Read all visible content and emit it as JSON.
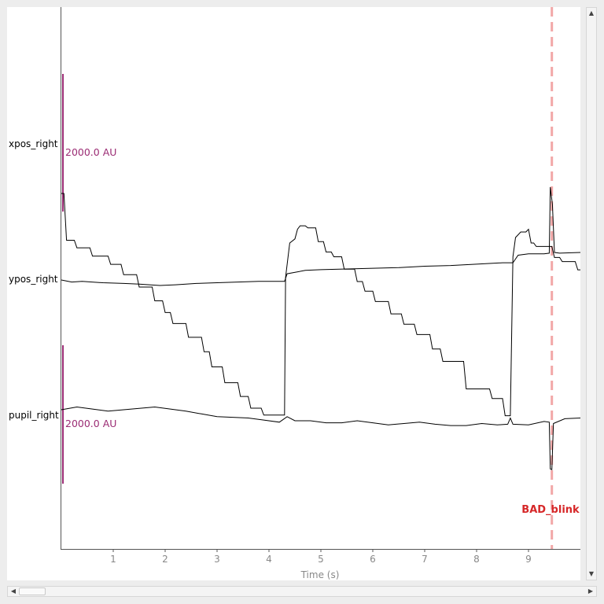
{
  "chart_data": {
    "type": "line",
    "xlabel": "Time (s)",
    "xlim": [
      0,
      10
    ],
    "x_ticks": [
      "1",
      "2",
      "3",
      "4",
      "5",
      "6",
      "7",
      "8",
      "9"
    ],
    "scale_unit_label": "2000.0 AU",
    "series": [
      {
        "name": "xpos_right",
        "color": "#000000",
        "points": [
          [
            0,
            -80
          ],
          [
            0.05,
            -80
          ],
          [
            0.1,
            -760
          ],
          [
            0.25,
            -760
          ],
          [
            0.3,
            -870
          ],
          [
            0.55,
            -870
          ],
          [
            0.6,
            -990
          ],
          [
            0.9,
            -990
          ],
          [
            0.95,
            -1110
          ],
          [
            1.15,
            -1110
          ],
          [
            1.2,
            -1260
          ],
          [
            1.45,
            -1260
          ],
          [
            1.5,
            -1440
          ],
          [
            1.75,
            -1440
          ],
          [
            1.8,
            -1640
          ],
          [
            1.95,
            -1640
          ],
          [
            2.0,
            -1810
          ],
          [
            2.1,
            -1810
          ],
          [
            2.15,
            -1970
          ],
          [
            2.4,
            -1970
          ],
          [
            2.45,
            -2170
          ],
          [
            2.7,
            -2170
          ],
          [
            2.75,
            -2380
          ],
          [
            2.85,
            -2380
          ],
          [
            2.9,
            -2600
          ],
          [
            3.1,
            -2600
          ],
          [
            3.15,
            -2830
          ],
          [
            3.4,
            -2830
          ],
          [
            3.45,
            -3030
          ],
          [
            3.6,
            -3030
          ],
          [
            3.65,
            -3200
          ],
          [
            3.85,
            -3200
          ],
          [
            3.9,
            -3300
          ],
          [
            4.3,
            -3300
          ],
          [
            4.32,
            -1300
          ],
          [
            4.4,
            -800
          ],
          [
            4.5,
            -740
          ],
          [
            4.55,
            -600
          ],
          [
            4.6,
            -550
          ],
          [
            4.7,
            -550
          ],
          [
            4.75,
            -580
          ],
          [
            4.9,
            -580
          ],
          [
            4.95,
            -780
          ],
          [
            5.05,
            -780
          ],
          [
            5.1,
            -930
          ],
          [
            5.2,
            -930
          ],
          [
            5.25,
            -1000
          ],
          [
            5.4,
            -1000
          ],
          [
            5.45,
            -1180
          ],
          [
            5.65,
            -1180
          ],
          [
            5.7,
            -1360
          ],
          [
            5.8,
            -1360
          ],
          [
            5.85,
            -1500
          ],
          [
            6.0,
            -1500
          ],
          [
            6.05,
            -1650
          ],
          [
            6.3,
            -1650
          ],
          [
            6.35,
            -1830
          ],
          [
            6.55,
            -1830
          ],
          [
            6.6,
            -1980
          ],
          [
            6.8,
            -1980
          ],
          [
            6.85,
            -2130
          ],
          [
            7.1,
            -2130
          ],
          [
            7.15,
            -2340
          ],
          [
            7.3,
            -2340
          ],
          [
            7.35,
            -2520
          ],
          [
            7.75,
            -2520
          ],
          [
            7.8,
            -2920
          ],
          [
            8.25,
            -2920
          ],
          [
            8.3,
            -3060
          ],
          [
            8.5,
            -3060
          ],
          [
            8.55,
            -3310
          ],
          [
            8.65,
            -3310
          ],
          [
            8.7,
            -1000
          ],
          [
            8.75,
            -720
          ],
          [
            8.85,
            -640
          ],
          [
            8.95,
            -640
          ],
          [
            9.0,
            -600
          ],
          [
            9.05,
            -800
          ],
          [
            9.1,
            -800
          ],
          [
            9.15,
            -850
          ],
          [
            9.45,
            -850
          ],
          [
            9.5,
            -1010
          ],
          [
            9.6,
            -1010
          ],
          [
            9.65,
            -1070
          ],
          [
            9.9,
            -1070
          ],
          [
            9.95,
            -1190
          ],
          [
            10.0,
            -1190
          ]
        ]
      },
      {
        "name": "ypos_right",
        "color": "#000000",
        "points": [
          [
            0,
            0
          ],
          [
            0.2,
            -30
          ],
          [
            0.4,
            -20
          ],
          [
            0.8,
            -40
          ],
          [
            1.2,
            -50
          ],
          [
            1.5,
            -60
          ],
          [
            1.9,
            -80
          ],
          [
            2.2,
            -70
          ],
          [
            2.6,
            -50
          ],
          [
            3.0,
            -40
          ],
          [
            3.4,
            -30
          ],
          [
            3.8,
            -20
          ],
          [
            4.3,
            -20
          ],
          [
            4.35,
            90
          ],
          [
            4.7,
            140
          ],
          [
            5.0,
            150
          ],
          [
            5.5,
            160
          ],
          [
            6.0,
            170
          ],
          [
            6.5,
            180
          ],
          [
            7.0,
            200
          ],
          [
            7.5,
            210
          ],
          [
            8.0,
            230
          ],
          [
            8.5,
            250
          ],
          [
            8.7,
            250
          ],
          [
            8.8,
            360
          ],
          [
            9.0,
            380
          ],
          [
            9.3,
            380
          ],
          [
            9.4,
            390
          ],
          [
            9.42,
            1350
          ],
          [
            9.46,
            1100
          ],
          [
            9.5,
            400
          ],
          [
            9.6,
            390
          ],
          [
            10.0,
            400
          ]
        ]
      },
      {
        "name": "pupil_right",
        "color": "#000000",
        "points": [
          [
            0,
            0
          ],
          [
            0.3,
            40
          ],
          [
            0.6,
            10
          ],
          [
            0.9,
            -20
          ],
          [
            1.2,
            0
          ],
          [
            1.5,
            20
          ],
          [
            1.8,
            40
          ],
          [
            2.1,
            10
          ],
          [
            2.4,
            -20
          ],
          [
            2.7,
            -60
          ],
          [
            3.0,
            -100
          ],
          [
            3.3,
            -110
          ],
          [
            3.6,
            -120
          ],
          [
            3.9,
            -150
          ],
          [
            4.2,
            -180
          ],
          [
            4.35,
            -100
          ],
          [
            4.5,
            -160
          ],
          [
            4.8,
            -160
          ],
          [
            5.1,
            -190
          ],
          [
            5.4,
            -190
          ],
          [
            5.7,
            -160
          ],
          [
            6.0,
            -190
          ],
          [
            6.3,
            -220
          ],
          [
            6.6,
            -200
          ],
          [
            6.9,
            -180
          ],
          [
            7.2,
            -210
          ],
          [
            7.5,
            -230
          ],
          [
            7.8,
            -230
          ],
          [
            8.1,
            -200
          ],
          [
            8.4,
            -220
          ],
          [
            8.6,
            -210
          ],
          [
            8.65,
            -120
          ],
          [
            8.7,
            -210
          ],
          [
            9.0,
            -220
          ],
          [
            9.3,
            -170
          ],
          [
            9.4,
            -180
          ],
          [
            9.42,
            -860
          ],
          [
            9.45,
            -870
          ],
          [
            9.48,
            -200
          ],
          [
            9.7,
            -130
          ],
          [
            10.0,
            -120
          ]
        ]
      }
    ],
    "annotations": [
      {
        "label": "BAD_blink",
        "x": 9.45,
        "color": "#d62728",
        "line_color": "#f2a7a7"
      }
    ]
  }
}
